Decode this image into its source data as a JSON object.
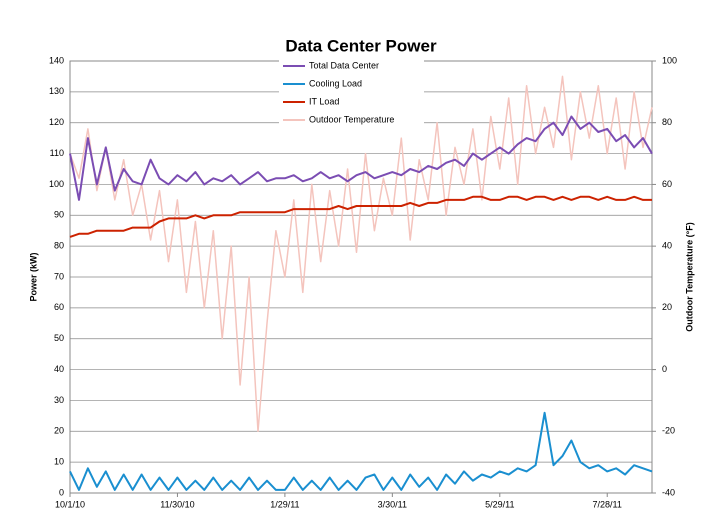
{
  "chart_data": {
    "type": "line",
    "title": "Data Center Power",
    "ylabel": "Power (kW)",
    "y2label": "Outdoor Temperature (°F)",
    "categories": [
      "10/1/10",
      null,
      null,
      null,
      null,
      null,
      null,
      null,
      null,
      null,
      null,
      null,
      "11/30/10",
      null,
      null,
      null,
      null,
      null,
      null,
      null,
      null,
      null,
      null,
      null,
      "1/29/11",
      null,
      null,
      null,
      null,
      null,
      null,
      null,
      null,
      null,
      null,
      null,
      "3/30/11",
      null,
      null,
      null,
      null,
      null,
      null,
      null,
      null,
      null,
      null,
      null,
      "5/29/11",
      null,
      null,
      null,
      null,
      null,
      null,
      null,
      null,
      null,
      null,
      null,
      "7/28/11",
      null,
      null,
      null,
      null,
      null
    ],
    "ylim": [
      0,
      140
    ],
    "yticks": [
      0,
      10,
      20,
      30,
      40,
      50,
      60,
      70,
      80,
      90,
      100,
      110,
      120,
      130,
      140
    ],
    "y2lim": [
      -40,
      100
    ],
    "y2ticks": [
      -40,
      -20,
      0,
      20,
      40,
      60,
      80,
      100
    ],
    "grid": true,
    "legend": "top",
    "series": [
      {
        "name": "Outdoor Temperature",
        "color": "#f4c4bd",
        "axis": "y2",
        "values": [
          70,
          62,
          78,
          58,
          72,
          55,
          68,
          50,
          60,
          42,
          58,
          35,
          55,
          25,
          48,
          20,
          45,
          10,
          40,
          -5,
          30,
          -20,
          15,
          45,
          30,
          55,
          25,
          60,
          35,
          58,
          40,
          65,
          38,
          70,
          45,
          62,
          50,
          75,
          42,
          68,
          55,
          80,
          50,
          72,
          60,
          78,
          55,
          82,
          65,
          88,
          60,
          92,
          70,
          85,
          72,
          95,
          68,
          90,
          75,
          92,
          70,
          88,
          65,
          90,
          72,
          85
        ]
      },
      {
        "name": "Total Data Center",
        "color": "#7b4db3",
        "values": [
          110,
          95,
          115,
          100,
          112,
          98,
          105,
          101,
          100,
          108,
          102,
          100,
          103,
          101,
          104,
          100,
          102,
          101,
          103,
          100,
          102,
          104,
          101,
          102,
          102,
          103,
          101,
          102,
          104,
          102,
          103,
          101,
          103,
          104,
          102,
          103,
          104,
          103,
          105,
          104,
          106,
          105,
          107,
          108,
          106,
          110,
          108,
          110,
          112,
          110,
          113,
          115,
          114,
          118,
          120,
          116,
          122,
          118,
          120,
          117,
          118,
          114,
          116,
          112,
          115,
          110
        ]
      },
      {
        "name": "IT Load",
        "color": "#cc2200",
        "values": [
          83,
          84,
          84,
          85,
          85,
          85,
          85,
          86,
          86,
          86,
          88,
          89,
          89,
          89,
          90,
          89,
          90,
          90,
          90,
          91,
          91,
          91,
          91,
          91,
          91,
          92,
          92,
          92,
          92,
          92,
          93,
          92,
          93,
          93,
          93,
          93,
          93,
          93,
          94,
          93,
          94,
          94,
          95,
          95,
          95,
          96,
          96,
          95,
          95,
          96,
          96,
          95,
          96,
          96,
          95,
          96,
          95,
          96,
          96,
          95,
          96,
          95,
          95,
          96,
          95,
          95
        ]
      },
      {
        "name": "Cooling Load",
        "color": "#1a8fd0",
        "values": [
          7,
          1,
          8,
          2,
          7,
          1,
          6,
          1,
          6,
          1,
          5,
          1,
          5,
          1,
          4,
          1,
          5,
          1,
          4,
          1,
          5,
          1,
          4,
          1,
          1,
          5,
          1,
          4,
          1,
          5,
          1,
          4,
          1,
          5,
          6,
          1,
          5,
          1,
          6,
          2,
          5,
          1,
          6,
          3,
          7,
          4,
          6,
          5,
          7,
          6,
          8,
          7,
          9,
          26,
          9,
          12,
          17,
          10,
          8,
          9,
          7,
          8,
          6,
          9,
          8,
          7
        ]
      }
    ]
  }
}
